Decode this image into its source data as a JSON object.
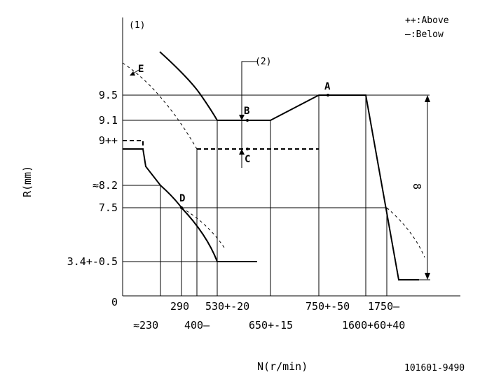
{
  "labels": {
    "legend_above": "++:Above",
    "legend_below": "—:Below",
    "marker1": "(1)",
    "marker2": "(2)",
    "point_a": "A",
    "point_b": "B",
    "point_c": "C",
    "point_d": "D",
    "point_e": "E",
    "y_axis": "R(mm)",
    "x_axis": "N(r/min)",
    "part_number": "101601-9490",
    "dimension_8": "8"
  },
  "y_ticks": {
    "v95": "9.5",
    "v91": "9.1",
    "v9": "9++",
    "v82": "≈8.2",
    "v75": "7.5",
    "v34": "3.4+-0.5",
    "v0": "0"
  },
  "x_ticks": {
    "t230": "≈230",
    "t290": "290",
    "t400": "400—",
    "t530": "530+-20",
    "t650": "650+-15",
    "t750": "750+-50",
    "t1600": "1600+60+40",
    "t1750": "1750—"
  }
}
